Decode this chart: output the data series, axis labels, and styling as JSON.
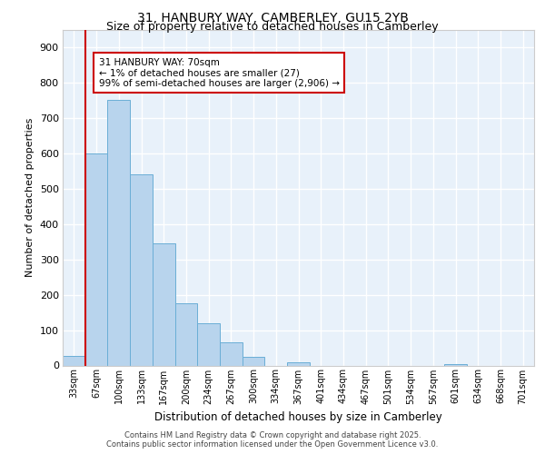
{
  "title_line1": "31, HANBURY WAY, CAMBERLEY, GU15 2YB",
  "title_line2": "Size of property relative to detached houses in Camberley",
  "xlabel": "Distribution of detached houses by size in Camberley",
  "ylabel": "Number of detached properties",
  "categories": [
    "33sqm",
    "67sqm",
    "100sqm",
    "133sqm",
    "167sqm",
    "200sqm",
    "234sqm",
    "267sqm",
    "300sqm",
    "334sqm",
    "367sqm",
    "401sqm",
    "434sqm",
    "467sqm",
    "501sqm",
    "534sqm",
    "567sqm",
    "601sqm",
    "634sqm",
    "668sqm",
    "701sqm"
  ],
  "values": [
    27,
    600,
    750,
    540,
    345,
    175,
    120,
    65,
    25,
    0,
    10,
    0,
    0,
    0,
    0,
    0,
    0,
    5,
    0,
    0,
    0
  ],
  "bar_color": "#b8d4ed",
  "bar_edge_color": "#6aaed6",
  "background_color": "#e8f1fa",
  "annotation_box_text": "31 HANBURY WAY: 70sqm\n← 1% of detached houses are smaller (27)\n99% of semi-detached houses are larger (2,906) →",
  "annotation_box_color": "#ffffff",
  "annotation_box_edge_color": "#cc0000",
  "vline_color": "#cc0000",
  "vline_x": 1,
  "ylim": [
    0,
    950
  ],
  "yticks": [
    0,
    100,
    200,
    300,
    400,
    500,
    600,
    700,
    800,
    900
  ],
  "grid_color": "#ffffff",
  "title_fontsize": 10,
  "subtitle_fontsize": 9,
  "footer_line1": "Contains HM Land Registry data © Crown copyright and database right 2025.",
  "footer_line2": "Contains public sector information licensed under the Open Government Licence v3.0."
}
